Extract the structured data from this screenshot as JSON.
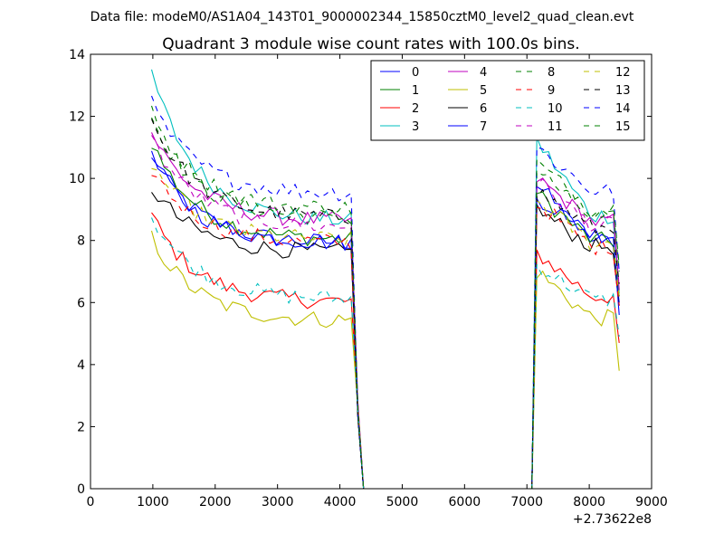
{
  "chart_data": {
    "type": "line",
    "suptitle": "Data file: modeM0/AS1A04_143T01_9000002344_15850cztM0_level2_quad_clean.evt",
    "title": "Quadrant 3 module wise count rates with 100.0s bins.",
    "xlabel": "",
    "ylabel": "",
    "x_offset_label": "+2.73622e8",
    "xlim": [
      0,
      9000
    ],
    "ylim": [
      0,
      14
    ],
    "xticks": [
      0,
      1000,
      2000,
      3000,
      4000,
      5000,
      6000,
      7000,
      8000,
      9000
    ],
    "xtick_labels": [
      "0",
      "1000",
      "2000",
      "3000",
      "4000",
      "5000",
      "6000",
      "7000",
      "8000",
      "9000"
    ],
    "yticks": [
      0,
      2,
      4,
      6,
      8,
      10,
      12,
      14
    ],
    "ytick_labels": [
      "0",
      "2",
      "4",
      "6",
      "8",
      "10",
      "12",
      "14"
    ],
    "legend_position": "top-right",
    "segments": [
      {
        "x_start": 980,
        "x_end": 4180,
        "points": 33
      },
      {
        "x_start": 4180,
        "x_end": 4380,
        "drop_to_zero": true
      },
      {
        "x_start": 4380,
        "x_end": 7080,
        "value": 0
      },
      {
        "x_start": 7080,
        "x_end": 8480,
        "points": 15
      }
    ],
    "series": [
      {
        "name": "0",
        "color": "#0000ff",
        "dash": "solid",
        "start": 10.8,
        "level": 7.9,
        "end2": 8.0,
        "start2": 9.8,
        "final": 6.0
      },
      {
        "name": "1",
        "color": "#008000",
        "dash": "solid",
        "start": 11.2,
        "level": 8.0,
        "end2": 8.0,
        "start2": 9.5,
        "final": 6.2
      },
      {
        "name": "2",
        "color": "#ff0000",
        "dash": "solid",
        "start": 8.8,
        "level": 6.0,
        "end2": 6.2,
        "start2": 7.6,
        "final": 4.7
      },
      {
        "name": "3",
        "color": "#00bfbf",
        "dash": "solid",
        "start": 13.4,
        "level": 8.6,
        "end2": 8.8,
        "start2": 11.2,
        "final": 6.3
      },
      {
        "name": "4",
        "color": "#bf00bf",
        "dash": "solid",
        "start": 11.5,
        "level": 8.6,
        "end2": 8.6,
        "start2": 10.0,
        "final": 6.4
      },
      {
        "name": "5",
        "color": "#bfbf00",
        "dash": "solid",
        "start": 8.1,
        "level": 5.4,
        "end2": 5.5,
        "start2": 7.0,
        "final": 3.8
      },
      {
        "name": "6",
        "color": "#000000",
        "dash": "solid",
        "start": 9.7,
        "level": 7.6,
        "end2": 7.8,
        "start2": 9.0,
        "final": 5.9
      },
      {
        "name": "7",
        "color": "#0000ff",
        "dash": "solid",
        "start": 10.7,
        "level": 7.9,
        "end2": 8.2,
        "start2": 9.4,
        "final": 5.6
      },
      {
        "name": "8",
        "color": "#008000",
        "dash": "dashed",
        "start": 12.0,
        "level": 8.7,
        "end2": 8.7,
        "start2": 10.3,
        "final": 7.0
      },
      {
        "name": "9",
        "color": "#ff0000",
        "dash": "dashed",
        "start": 10.3,
        "level": 7.9,
        "end2": 7.8,
        "start2": 9.2,
        "final": 5.9
      },
      {
        "name": "10",
        "color": "#00bfbf",
        "dash": "dashed",
        "start": 8.8,
        "level": 6.1,
        "end2": 6.1,
        "start2": 7.2,
        "final": 4.9
      },
      {
        "name": "11",
        "color": "#bf00bf",
        "dash": "dashed",
        "start": 11.3,
        "level": 8.4,
        "end2": 8.5,
        "start2": 9.9,
        "final": 6.5
      },
      {
        "name": "12",
        "color": "#bfbf00",
        "dash": "dashed",
        "start": 10.5,
        "level": 8.0,
        "end2": 7.9,
        "start2": 9.3,
        "final": 6.2
      },
      {
        "name": "13",
        "color": "#000000",
        "dash": "dashed",
        "start": 11.9,
        "level": 8.7,
        "end2": 8.4,
        "start2": 9.6,
        "final": 6.6
      },
      {
        "name": "14",
        "color": "#0000ff",
        "dash": "dashed",
        "start": 12.4,
        "level": 9.5,
        "end2": 9.6,
        "start2": 11.0,
        "final": 7.0
      },
      {
        "name": "15",
        "color": "#008000",
        "dash": "dashed",
        "start": 12.1,
        "level": 9.0,
        "end2": 9.0,
        "start2": 10.5,
        "final": 7.2
      }
    ]
  }
}
